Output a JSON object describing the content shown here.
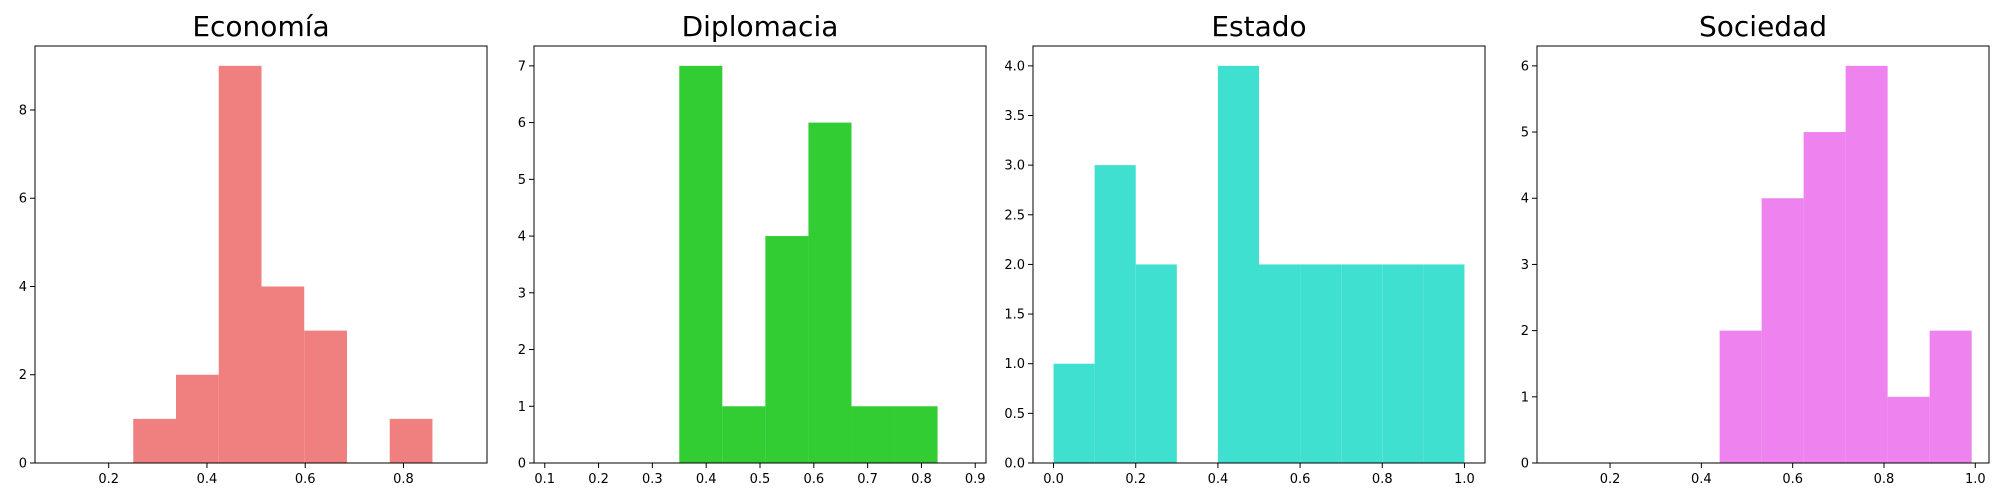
{
  "chart_data": [
    {
      "type": "bar",
      "title": "Economía",
      "color": "#f08080",
      "xlim": [
        0.05,
        0.97
      ],
      "ylim": [
        0,
        9.45
      ],
      "xticks": [
        0.2,
        0.4,
        0.6,
        0.8
      ],
      "xtick_labels": [
        "0.2",
        "0.4",
        "0.6",
        "0.8"
      ],
      "yticks": [
        0,
        2,
        4,
        6,
        8
      ],
      "ytick_labels": [
        "0",
        "2",
        "4",
        "6",
        "8"
      ],
      "bins": [
        {
          "x0": 0.25,
          "x1": 0.337,
          "count": 1
        },
        {
          "x0": 0.337,
          "x1": 0.424,
          "count": 2
        },
        {
          "x0": 0.424,
          "x1": 0.511,
          "count": 9
        },
        {
          "x0": 0.511,
          "x1": 0.598,
          "count": 4
        },
        {
          "x0": 0.598,
          "x1": 0.685,
          "count": 3
        },
        {
          "x0": 0.685,
          "x1": 0.772,
          "count": 0
        },
        {
          "x0": 0.772,
          "x1": 0.859,
          "count": 1
        }
      ]
    },
    {
      "type": "bar",
      "title": "Diplomacia",
      "color": "#32cd32",
      "xlim": [
        0.08,
        0.92
      ],
      "ylim": [
        0,
        7.35
      ],
      "xticks": [
        0.1,
        0.2,
        0.3,
        0.4,
        0.5,
        0.6,
        0.7,
        0.8,
        0.9
      ],
      "xtick_labels": [
        "0.1",
        "0.2",
        "0.3",
        "0.4",
        "0.5",
        "0.6",
        "0.7",
        "0.8",
        "0.9"
      ],
      "yticks": [
        0,
        1,
        2,
        3,
        4,
        5,
        6,
        7
      ],
      "ytick_labels": [
        "0",
        "1",
        "2",
        "3",
        "4",
        "5",
        "6",
        "7"
      ],
      "bins": [
        {
          "x0": 0.35,
          "x1": 0.43,
          "count": 7
        },
        {
          "x0": 0.43,
          "x1": 0.51,
          "count": 1
        },
        {
          "x0": 0.51,
          "x1": 0.59,
          "count": 4
        },
        {
          "x0": 0.59,
          "x1": 0.67,
          "count": 6
        },
        {
          "x0": 0.67,
          "x1": 0.75,
          "count": 1
        },
        {
          "x0": 0.75,
          "x1": 0.83,
          "count": 1
        }
      ]
    },
    {
      "type": "bar",
      "title": "Estado",
      "color": "#40e0d0",
      "xlim": [
        -0.05,
        1.05
      ],
      "ylim": [
        0,
        4.2
      ],
      "xticks": [
        0.0,
        0.2,
        0.4,
        0.6,
        0.8,
        1.0
      ],
      "xtick_labels": [
        "0.0",
        "0.2",
        "0.4",
        "0.6",
        "0.8",
        "1.0"
      ],
      "yticks": [
        0.0,
        0.5,
        1.0,
        1.5,
        2.0,
        2.5,
        3.0,
        3.5,
        4.0
      ],
      "ytick_labels": [
        "0.0",
        "0.5",
        "1.0",
        "1.5",
        "2.0",
        "2.5",
        "3.0",
        "3.5",
        "4.0"
      ],
      "bins": [
        {
          "x0": 0.0,
          "x1": 0.1,
          "count": 1
        },
        {
          "x0": 0.1,
          "x1": 0.2,
          "count": 3
        },
        {
          "x0": 0.2,
          "x1": 0.3,
          "count": 2
        },
        {
          "x0": 0.3,
          "x1": 0.4,
          "count": 0
        },
        {
          "x0": 0.4,
          "x1": 0.5,
          "count": 4
        },
        {
          "x0": 0.5,
          "x1": 0.6,
          "count": 2
        },
        {
          "x0": 0.6,
          "x1": 0.7,
          "count": 2
        },
        {
          "x0": 0.7,
          "x1": 0.8,
          "count": 2
        },
        {
          "x0": 0.8,
          "x1": 0.9,
          "count": 2
        },
        {
          "x0": 0.9,
          "x1": 1.0,
          "count": 2
        }
      ]
    },
    {
      "type": "bar",
      "title": "Sociedad",
      "color": "#ee82ee",
      "xlim": [
        0.04,
        1.03
      ],
      "ylim": [
        0,
        6.3
      ],
      "xticks": [
        0.2,
        0.4,
        0.6,
        0.8,
        1.0
      ],
      "xtick_labels": [
        "0.2",
        "0.4",
        "0.6",
        "0.8",
        "1.0"
      ],
      "yticks": [
        0,
        1,
        2,
        3,
        4,
        5,
        6
      ],
      "ytick_labels": [
        "0",
        "1",
        "2",
        "3",
        "4",
        "5",
        "6"
      ],
      "bins": [
        {
          "x0": 0.44,
          "x1": 0.532,
          "count": 2
        },
        {
          "x0": 0.532,
          "x1": 0.624,
          "count": 4
        },
        {
          "x0": 0.624,
          "x1": 0.716,
          "count": 5
        },
        {
          "x0": 0.716,
          "x1": 0.808,
          "count": 6
        },
        {
          "x0": 0.808,
          "x1": 0.9,
          "count": 1
        },
        {
          "x0": 0.9,
          "x1": 0.992,
          "count": 2
        }
      ]
    }
  ]
}
